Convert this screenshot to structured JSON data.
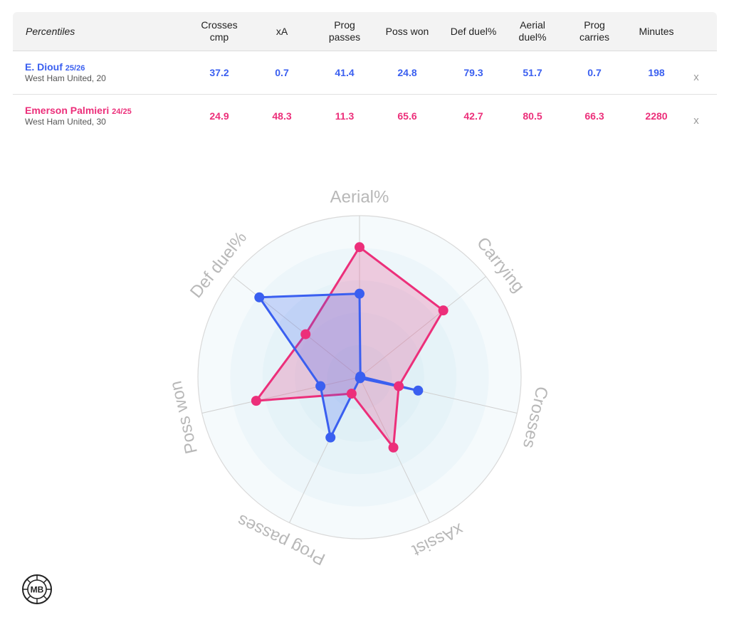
{
  "table": {
    "header_label": "Percentiles",
    "columns": [
      "Crosses\ncmp",
      "xA",
      "Prog\npasses",
      "Poss won",
      "Def duel%",
      "Aerial\nduel%",
      "Prog\ncarries",
      "Minutes"
    ],
    "remove_symbol": "x",
    "players": [
      {
        "name": "E. Diouf",
        "season": "25/26",
        "team": "West Ham United, 20",
        "values": [
          "37.2",
          "0.7",
          "41.4",
          "24.8",
          "79.3",
          "51.7",
          "0.7",
          "198"
        ]
      },
      {
        "name": "Emerson Palmieri",
        "season": "24/25",
        "team": "West Ham United, 30",
        "values": [
          "24.9",
          "48.3",
          "11.3",
          "65.6",
          "42.7",
          "80.5",
          "66.3",
          "2280"
        ]
      }
    ]
  },
  "colors": {
    "player1": "#3a5ff0",
    "player2": "#ec2f7a",
    "axis_label": "#b8b8b8",
    "ring_fill": "#e4f3f8"
  },
  "chart_data": {
    "type": "radar",
    "axes": [
      "Aerial%",
      "Carrying",
      "Crosses",
      "xAssist",
      "Prog passes",
      "Poss won",
      "Def duel%"
    ],
    "range": [
      0,
      100
    ],
    "series": [
      {
        "name": "E. Diouf",
        "values": [
          51.7,
          0.7,
          37.2,
          0.7,
          41.4,
          24.8,
          79.3
        ]
      },
      {
        "name": "Emerson Palmieri",
        "values": [
          80.5,
          66.3,
          24.9,
          48.3,
          11.3,
          65.6,
          42.7
        ]
      }
    ]
  },
  "logo": {
    "text": "MB",
    "icon": "mb-logo-icon"
  }
}
